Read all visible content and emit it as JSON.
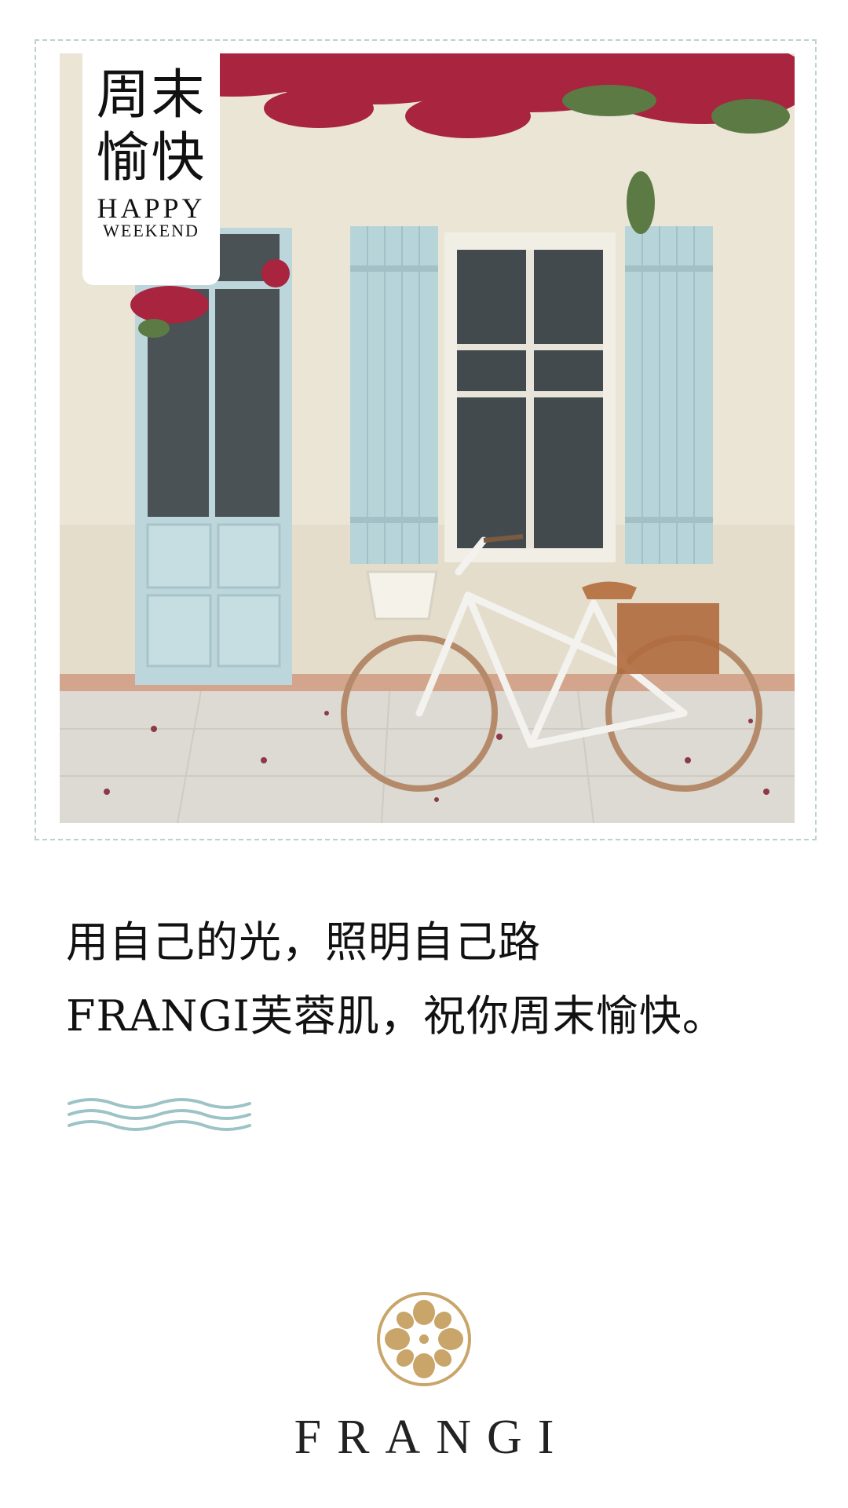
{
  "badge": {
    "title_line1": "周末",
    "title_line2": "愉快",
    "subtitle1": "HAPPY",
    "subtitle2": "WEEKEND"
  },
  "message": {
    "line1": "用自己的光，照明自己路",
    "line2": "FRANGI芙蓉肌，祝你周末愉快。"
  },
  "brand": {
    "name": "FRANGI",
    "logo_icon": "fleur-emblem-icon"
  },
  "colors": {
    "frame_border": "#b9d3d3",
    "waves": "#9cc3c5",
    "logo_gold": "#c9a56a",
    "shutter_blue": "#b7d4d9"
  }
}
